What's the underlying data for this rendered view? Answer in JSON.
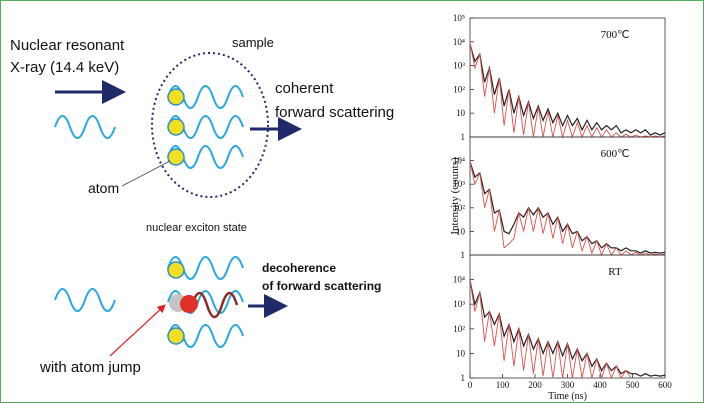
{
  "diagram": {
    "incident_line1": "Nuclear resonant",
    "incident_line2": "X-ray (14.4 keV)",
    "sample": "sample",
    "coherent_line1": "coherent",
    "coherent_line2": "forward scattering",
    "atom": "atom",
    "exciton": "nuclear exciton state",
    "decoherence_line1": "decoherence",
    "decoherence_line2": "of forward scattering",
    "jump": "with atom jump"
  },
  "chart_data": [
    {
      "type": "line",
      "annotation": "700℃",
      "log_y": true,
      "x": [
        0,
        15,
        30,
        45,
        60,
        75,
        90,
        105,
        120,
        135,
        150,
        165,
        180,
        195,
        210,
        225,
        240,
        255,
        270,
        285,
        300,
        315,
        330,
        345,
        360,
        375,
        390,
        405,
        420,
        435,
        450,
        465,
        480,
        495,
        510,
        525,
        540,
        555,
        570,
        585,
        600
      ],
      "xlim": [
        0,
        600
      ],
      "ylim": [
        1,
        100000
      ],
      "yticks": [
        1,
        10,
        {
          "value": 100,
          "label": "10²"
        },
        {
          "value": 1000,
          "label": "10³"
        },
        {
          "value": 10000,
          "label": "10⁴"
        },
        {
          "value": 100000,
          "label": "10⁵"
        }
      ],
      "series": [
        {
          "color": "#222222",
          "values": [
            8000,
            1500,
            3000,
            200,
            800,
            60,
            300,
            20,
            100,
            10,
            50,
            8,
            30,
            6,
            20,
            5,
            15,
            4,
            10,
            3,
            8,
            3,
            6,
            2,
            5,
            2,
            4,
            2,
            3,
            2,
            3,
            1.5,
            2,
            1.5,
            2,
            1.5,
            2,
            1.2,
            1.5,
            1.2,
            1.5
          ]
        },
        {
          "color": "#e0504a",
          "values": [
            9000,
            800,
            3000,
            50,
            800,
            10,
            300,
            3,
            100,
            1.5,
            50,
            1.2,
            30,
            1,
            18,
            1,
            12,
            1,
            8,
            1,
            5,
            1,
            4,
            1,
            3,
            1,
            2.5,
            1,
            2,
            1,
            1.5,
            1,
            1.3,
            1,
            1.2,
            1,
            1.1,
            1,
            1.1,
            1,
            1.1
          ]
        }
      ]
    },
    {
      "type": "line",
      "annotation": "600℃",
      "log_y": true,
      "ylabel": "Intensity (counts)",
      "x": [
        0,
        15,
        30,
        45,
        60,
        75,
        90,
        105,
        120,
        135,
        150,
        165,
        180,
        195,
        210,
        225,
        240,
        255,
        270,
        285,
        300,
        315,
        330,
        345,
        360,
        375,
        390,
        405,
        420,
        435,
        450,
        465,
        480,
        495,
        510,
        525,
        540,
        555,
        570,
        585,
        600
      ],
      "xlim": [
        0,
        600
      ],
      "ylim": [
        1,
        100000
      ],
      "yticks": [
        1,
        10,
        {
          "value": 100,
          "label": "10²"
        },
        {
          "value": 1000,
          "label": "10³"
        },
        {
          "value": 10000,
          "label": "10⁴"
        }
      ],
      "series": [
        {
          "color": "#222222",
          "values": [
            9000,
            2000,
            3000,
            400,
            600,
            60,
            80,
            10,
            8,
            20,
            60,
            40,
            100,
            50,
            100,
            40,
            60,
            20,
            40,
            10,
            20,
            8,
            10,
            4,
            6,
            3,
            4,
            2,
            3,
            2,
            2,
            1.5,
            2,
            1.5,
            1.5,
            1.2,
            1.5,
            1.2,
            1.3,
            1.2,
            1.3
          ]
        },
        {
          "color": "#e0504a",
          "values": [
            9000,
            1000,
            3000,
            100,
            600,
            10,
            80,
            2,
            3,
            5,
            60,
            10,
            100,
            10,
            100,
            8,
            60,
            5,
            40,
            3,
            20,
            2,
            10,
            1.5,
            6,
            1.2,
            4,
            1,
            3,
            1,
            2,
            1,
            1.5,
            1,
            1.3,
            1,
            1.2,
            1,
            1.1,
            1,
            1.1
          ]
        }
      ]
    },
    {
      "type": "line",
      "annotation": "RT",
      "log_y": true,
      "xlabel": "Time (ns)",
      "x": [
        0,
        15,
        30,
        45,
        60,
        75,
        90,
        105,
        120,
        135,
        150,
        165,
        180,
        195,
        210,
        225,
        240,
        255,
        270,
        285,
        300,
        315,
        330,
        345,
        360,
        375,
        390,
        405,
        420,
        435,
        450,
        465,
        480,
        495,
        510,
        525,
        540,
        555,
        570,
        585,
        600
      ],
      "xlim": [
        0,
        600
      ],
      "ylim": [
        1,
        100000
      ],
      "xticks": [
        0,
        100,
        200,
        300,
        400,
        500,
        600
      ],
      "yticks": [
        1,
        10,
        {
          "value": 100,
          "label": "10²"
        },
        {
          "value": 1000,
          "label": "10³"
        },
        {
          "value": 10000,
          "label": "10⁴"
        }
      ],
      "series": [
        {
          "color": "#222222",
          "values": [
            9000,
            1000,
            3000,
            300,
            500,
            150,
            400,
            50,
            150,
            30,
            100,
            20,
            60,
            15,
            40,
            10,
            30,
            10,
            30,
            8,
            25,
            6,
            15,
            5,
            10,
            3,
            6,
            2,
            4,
            2,
            3,
            1.5,
            2,
            1.5,
            1.5,
            1.2,
            1.5,
            1.2,
            1.3,
            1.2,
            1.3
          ]
        },
        {
          "color": "#e0504a",
          "values": [
            9000,
            500,
            3000,
            30,
            500,
            20,
            400,
            5,
            150,
            3,
            100,
            2,
            60,
            1.5,
            40,
            1.2,
            30,
            1,
            30,
            1,
            25,
            1,
            15,
            1,
            10,
            1,
            6,
            1,
            4,
            1,
            3,
            1,
            2,
            1,
            null,
            null,
            null,
            null,
            null,
            null,
            null
          ]
        }
      ]
    }
  ]
}
